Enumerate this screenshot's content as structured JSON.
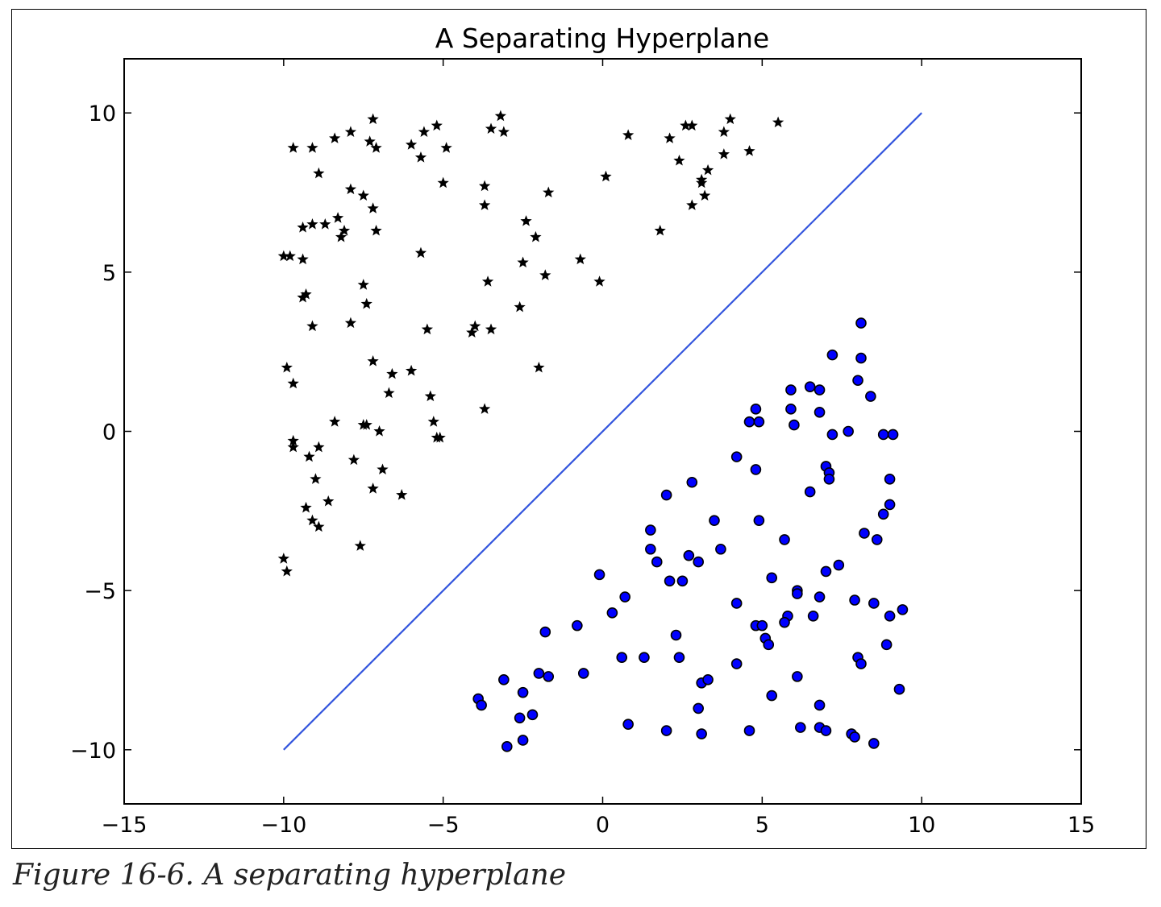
{
  "caption": "Figure 16-6. A separating hyperplane",
  "chart_data": {
    "type": "scatter",
    "title": "A Separating Hyperplane",
    "xlabel": "",
    "ylabel": "",
    "xlim": [
      -15,
      15
    ],
    "ylim": [
      -11.7,
      11.7
    ],
    "xticks": [
      "−15",
      "−10",
      "−5",
      "0",
      "5",
      "10",
      "15"
    ],
    "xtick_values": [
      -15,
      -10,
      -5,
      0,
      5,
      10,
      15
    ],
    "yticks": [
      "−10",
      "−5",
      "0",
      "5",
      "10"
    ],
    "ytick_values": [
      -10,
      -5,
      0,
      5,
      10
    ],
    "grid": false,
    "line": {
      "x": [
        -10,
        10
      ],
      "y": [
        -10,
        10
      ],
      "color": "#3355dd"
    },
    "series": [
      {
        "marker": "star",
        "color": "#000000",
        "points": [
          [
            -9.7,
            8.9
          ],
          [
            -9.1,
            8.9
          ],
          [
            -8.4,
            9.2
          ],
          [
            -7.9,
            9.4
          ],
          [
            -7.2,
            9.8
          ],
          [
            -7.3,
            9.1
          ],
          [
            -7.1,
            8.9
          ],
          [
            -6.0,
            9.0
          ],
          [
            -5.6,
            9.4
          ],
          [
            -5.2,
            9.6
          ],
          [
            -5.7,
            8.6
          ],
          [
            -4.9,
            8.9
          ],
          [
            -3.5,
            9.5
          ],
          [
            -3.2,
            9.9
          ],
          [
            -3.1,
            9.4
          ],
          [
            0.8,
            9.3
          ],
          [
            2.1,
            9.2
          ],
          [
            2.6,
            9.6
          ],
          [
            2.8,
            9.6
          ],
          [
            3.8,
            9.4
          ],
          [
            4.0,
            9.8
          ],
          [
            5.5,
            9.7
          ],
          [
            -8.9,
            8.1
          ],
          [
            -7.9,
            7.6
          ],
          [
            -7.5,
            7.4
          ],
          [
            -7.2,
            7.0
          ],
          [
            -5.0,
            7.8
          ],
          [
            -3.7,
            7.7
          ],
          [
            -3.7,
            7.1
          ],
          [
            -1.7,
            7.5
          ],
          [
            0.1,
            8.0
          ],
          [
            2.4,
            8.5
          ],
          [
            3.1,
            7.8
          ],
          [
            3.1,
            7.9
          ],
          [
            3.3,
            8.2
          ],
          [
            2.8,
            7.1
          ],
          [
            3.2,
            7.4
          ],
          [
            3.8,
            8.7
          ],
          [
            4.6,
            8.8
          ],
          [
            -9.4,
            6.4
          ],
          [
            -9.1,
            6.5
          ],
          [
            -8.7,
            6.5
          ],
          [
            -8.3,
            6.7
          ],
          [
            -8.1,
            6.3
          ],
          [
            -8.2,
            6.1
          ],
          [
            -7.1,
            6.3
          ],
          [
            -2.4,
            6.6
          ],
          [
            -2.1,
            6.1
          ],
          [
            1.8,
            6.3
          ],
          [
            -10.0,
            5.5
          ],
          [
            -9.8,
            5.5
          ],
          [
            -9.4,
            5.4
          ],
          [
            -5.7,
            5.6
          ],
          [
            -2.5,
            5.3
          ],
          [
            -1.8,
            4.9
          ],
          [
            -0.7,
            5.4
          ],
          [
            -0.1,
            4.7
          ],
          [
            -3.6,
            4.7
          ],
          [
            -9.3,
            4.3
          ],
          [
            -9.4,
            4.2
          ],
          [
            -7.5,
            4.6
          ],
          [
            -7.4,
            4.0
          ],
          [
            -2.6,
            3.9
          ],
          [
            -9.1,
            3.3
          ],
          [
            -7.9,
            3.4
          ],
          [
            -5.5,
            3.2
          ],
          [
            -4.0,
            3.3
          ],
          [
            -4.1,
            3.1
          ],
          [
            -3.5,
            3.2
          ],
          [
            -9.9,
            2.0
          ],
          [
            -9.7,
            1.5
          ],
          [
            -7.2,
            2.2
          ],
          [
            -6.0,
            1.9
          ],
          [
            -6.6,
            1.8
          ],
          [
            -6.7,
            1.2
          ],
          [
            -5.4,
            1.1
          ],
          [
            -3.7,
            0.7
          ],
          [
            -2.0,
            2.0
          ],
          [
            -8.4,
            0.3
          ],
          [
            -7.5,
            0.2
          ],
          [
            -7.4,
            0.2
          ],
          [
            -7.0,
            0.0
          ],
          [
            -5.3,
            0.3
          ],
          [
            -5.2,
            -0.2
          ],
          [
            -5.1,
            -0.2
          ],
          [
            -9.7,
            -0.3
          ],
          [
            -9.7,
            -0.5
          ],
          [
            -9.2,
            -0.8
          ],
          [
            -8.9,
            -0.5
          ],
          [
            -7.8,
            -0.9
          ],
          [
            -6.9,
            -1.2
          ],
          [
            -9.0,
            -1.5
          ],
          [
            -8.6,
            -2.2
          ],
          [
            -9.3,
            -2.4
          ],
          [
            -9.1,
            -2.8
          ],
          [
            -8.9,
            -3.0
          ],
          [
            -7.2,
            -1.8
          ],
          [
            -6.3,
            -2.0
          ],
          [
            -7.6,
            -3.6
          ],
          [
            -10.0,
            -4.0
          ],
          [
            -9.9,
            -4.4
          ]
        ]
      },
      {
        "marker": "circle",
        "color": "#0000ff",
        "points": [
          [
            8.1,
            3.4
          ],
          [
            7.2,
            2.4
          ],
          [
            8.1,
            2.3
          ],
          [
            8.0,
            1.6
          ],
          [
            5.9,
            1.3
          ],
          [
            6.5,
            1.4
          ],
          [
            6.8,
            1.3
          ],
          [
            8.4,
            1.1
          ],
          [
            4.8,
            0.7
          ],
          [
            5.9,
            0.7
          ],
          [
            6.8,
            0.6
          ],
          [
            4.6,
            0.3
          ],
          [
            4.9,
            0.3
          ],
          [
            6.0,
            0.2
          ],
          [
            7.2,
            -0.1
          ],
          [
            7.7,
            0.0
          ],
          [
            8.8,
            -0.1
          ],
          [
            9.1,
            -0.1
          ],
          [
            4.2,
            -0.8
          ],
          [
            4.8,
            -1.2
          ],
          [
            7.0,
            -1.1
          ],
          [
            7.1,
            -1.3
          ],
          [
            7.1,
            -1.5
          ],
          [
            9.0,
            -1.5
          ],
          [
            2.8,
            -1.6
          ],
          [
            2.0,
            -2.0
          ],
          [
            6.5,
            -1.9
          ],
          [
            9.0,
            -2.3
          ],
          [
            8.8,
            -2.6
          ],
          [
            3.5,
            -2.8
          ],
          [
            4.9,
            -2.8
          ],
          [
            1.5,
            -3.1
          ],
          [
            1.5,
            -3.7
          ],
          [
            8.2,
            -3.2
          ],
          [
            8.6,
            -3.4
          ],
          [
            5.7,
            -3.4
          ],
          [
            3.7,
            -3.7
          ],
          [
            1.7,
            -4.1
          ],
          [
            2.7,
            -3.9
          ],
          [
            3.0,
            -4.1
          ],
          [
            7.4,
            -4.2
          ],
          [
            7.0,
            -4.4
          ],
          [
            -0.1,
            -4.5
          ],
          [
            2.1,
            -4.7
          ],
          [
            2.5,
            -4.7
          ],
          [
            5.3,
            -4.6
          ],
          [
            6.1,
            -5.0
          ],
          [
            6.1,
            -5.1
          ],
          [
            6.8,
            -5.2
          ],
          [
            0.7,
            -5.2
          ],
          [
            4.2,
            -5.4
          ],
          [
            7.9,
            -5.3
          ],
          [
            8.5,
            -5.4
          ],
          [
            9.4,
            -5.6
          ],
          [
            0.3,
            -5.7
          ],
          [
            5.8,
            -5.8
          ],
          [
            5.7,
            -6.0
          ],
          [
            6.6,
            -5.8
          ],
          [
            9.0,
            -5.8
          ],
          [
            4.8,
            -6.1
          ],
          [
            5.0,
            -6.1
          ],
          [
            -0.8,
            -6.1
          ],
          [
            -1.8,
            -6.3
          ],
          [
            2.3,
            -6.4
          ],
          [
            5.1,
            -6.5
          ],
          [
            5.2,
            -6.7
          ],
          [
            8.9,
            -6.7
          ],
          [
            0.6,
            -7.1
          ],
          [
            1.3,
            -7.1
          ],
          [
            2.4,
            -7.1
          ],
          [
            8.0,
            -7.1
          ],
          [
            8.1,
            -7.3
          ],
          [
            4.2,
            -7.3
          ],
          [
            -0.6,
            -7.6
          ],
          [
            -2.0,
            -7.6
          ],
          [
            -1.7,
            -7.7
          ],
          [
            -3.1,
            -7.8
          ],
          [
            6.1,
            -7.7
          ],
          [
            3.1,
            -7.9
          ],
          [
            3.3,
            -7.8
          ],
          [
            9.3,
            -8.1
          ],
          [
            -3.9,
            -8.4
          ],
          [
            -3.8,
            -8.6
          ],
          [
            -2.5,
            -8.2
          ],
          [
            5.3,
            -8.3
          ],
          [
            6.8,
            -8.6
          ],
          [
            3.0,
            -8.7
          ],
          [
            -2.6,
            -9.0
          ],
          [
            -2.2,
            -8.9
          ],
          [
            0.8,
            -9.2
          ],
          [
            2.0,
            -9.4
          ],
          [
            3.1,
            -9.5
          ],
          [
            4.6,
            -9.4
          ],
          [
            6.2,
            -9.3
          ],
          [
            6.8,
            -9.3
          ],
          [
            7.0,
            -9.4
          ],
          [
            7.8,
            -9.5
          ],
          [
            7.9,
            -9.6
          ],
          [
            8.5,
            -9.8
          ],
          [
            -2.5,
            -9.7
          ],
          [
            -3.0,
            -9.9
          ]
        ]
      }
    ]
  }
}
